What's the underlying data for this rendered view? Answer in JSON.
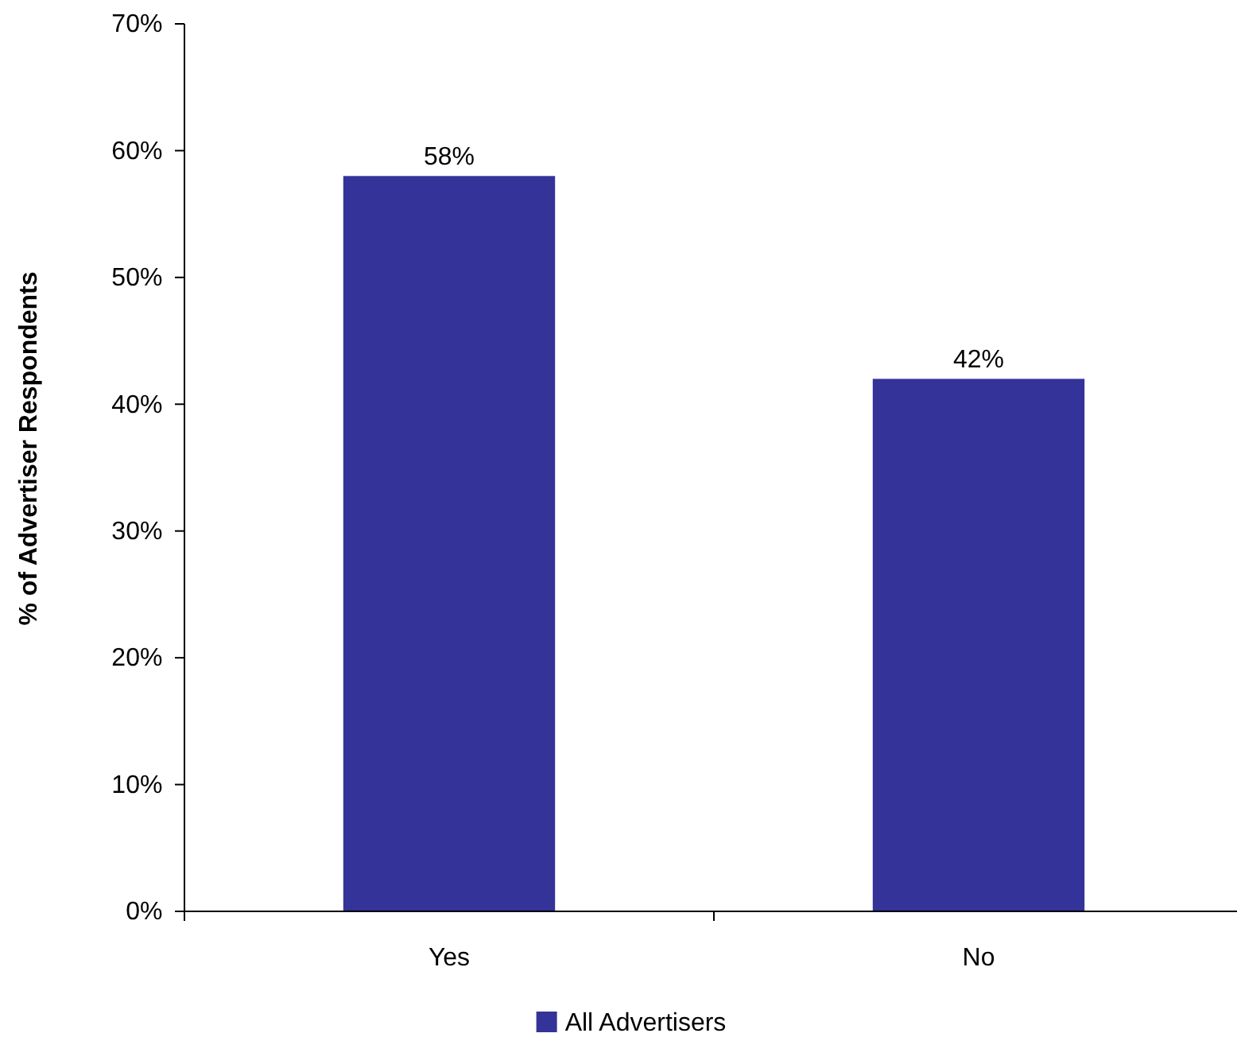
{
  "chart_data": {
    "type": "bar",
    "ylabel": "% of Advertiser Respondents",
    "categories": [
      "Yes",
      "No"
    ],
    "series": [
      {
        "name": "All Advertisers",
        "color": "#333399",
        "values": [
          58,
          42
        ],
        "value_labels": [
          "58%",
          "42%"
        ]
      }
    ],
    "ylim": [
      0,
      70
    ],
    "yticks": [
      {
        "value": 0,
        "label": "0%"
      },
      {
        "value": 10,
        "label": "10%"
      },
      {
        "value": 20,
        "label": "20%"
      },
      {
        "value": 30,
        "label": "30%"
      },
      {
        "value": 40,
        "label": "40%"
      },
      {
        "value": 50,
        "label": "50%"
      },
      {
        "value": 60,
        "label": "60%"
      },
      {
        "value": 70,
        "label": "70%"
      }
    ],
    "grid": false,
    "legend": "bottom"
  }
}
